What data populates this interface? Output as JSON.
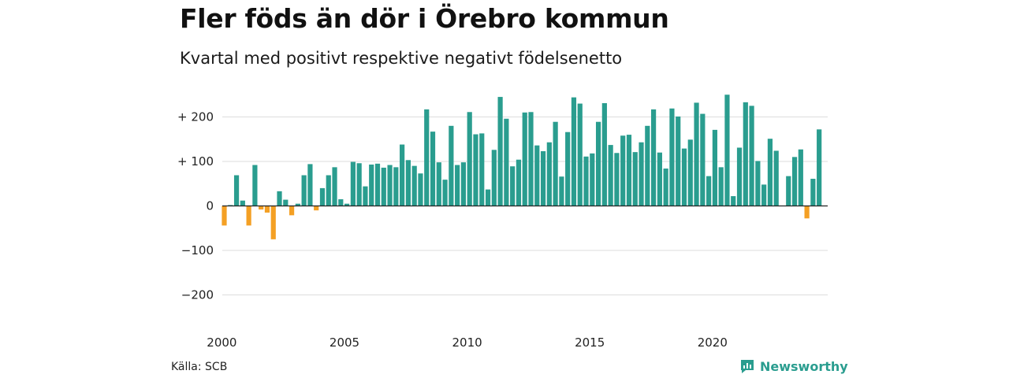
{
  "title": "Fler föds än dör i Örebro kommun",
  "subtitle": "Kvartal med positivt respektive negativt födelsenetto",
  "source": "Källa: SCB",
  "brand": "Newsworthy",
  "colors": {
    "positive": "#2a9d8f",
    "negative": "#f4a024",
    "grid": "#dddddd",
    "zero": "#222222",
    "brand": "#2a9d8f"
  },
  "chart_data": {
    "type": "bar",
    "title": "Fler föds än dör i Örebro kommun",
    "subtitle": "Kvartal med positivt respektive negativt födelsenetto",
    "ylim": [
      -220,
      250
    ],
    "y_ticks": [
      {
        "value": 200,
        "label": "+ 200"
      },
      {
        "value": 100,
        "label": "+ 100"
      },
      {
        "value": 0,
        "label": "0"
      },
      {
        "value": -100,
        "label": "−100"
      },
      {
        "value": -200,
        "label": "−200"
      }
    ],
    "x_ticks": [
      2000,
      2005,
      2010,
      2015,
      2020
    ],
    "start": {
      "year": 2000,
      "quarter": 1
    },
    "grid": true,
    "values": [
      -44,
      2,
      69,
      12,
      -44,
      92,
      -8,
      -15,
      -75,
      33,
      14,
      -21,
      5,
      69,
      94,
      -10,
      40,
      69,
      87,
      15,
      5,
      99,
      96,
      44,
      93,
      95,
      86,
      92,
      87,
      138,
      103,
      90,
      73,
      217,
      167,
      98,
      59,
      180,
      92,
      98,
      211,
      161,
      163,
      37,
      126,
      245,
      196,
      89,
      104,
      210,
      211,
      136,
      123,
      143,
      189,
      66,
      166,
      244,
      230,
      111,
      118,
      189,
      231,
      137,
      119,
      158,
      160,
      121,
      143,
      180,
      217,
      120,
      84,
      219,
      201,
      129,
      149,
      232,
      207,
      67,
      171,
      87,
      250,
      22,
      131,
      233,
      225,
      101,
      48,
      151,
      124,
      0,
      67,
      110,
      127,
      -28,
      61,
      172
    ]
  }
}
